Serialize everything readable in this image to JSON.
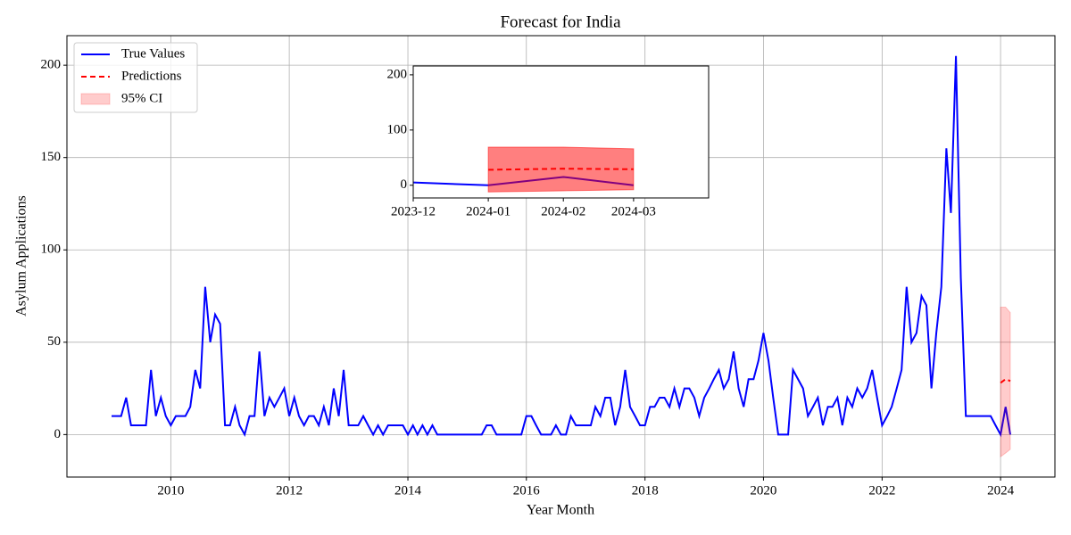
{
  "chart_data": {
    "type": "line",
    "title": "Forecast for India",
    "x_label": "Year Month",
    "y_label": "Asylum Applications",
    "x": [
      "2009-01",
      "2009-02",
      "2009-03",
      "2009-04",
      "2009-05",
      "2009-06",
      "2009-07",
      "2009-08",
      "2009-09",
      "2009-10",
      "2009-11",
      "2009-12",
      "2010-01",
      "2010-02",
      "2010-03",
      "2010-04",
      "2010-05",
      "2010-06",
      "2010-07",
      "2010-08",
      "2010-09",
      "2010-10",
      "2010-11",
      "2010-12",
      "2011-01",
      "2011-02",
      "2011-03",
      "2011-04",
      "2011-05",
      "2011-06",
      "2011-07",
      "2011-08",
      "2011-09",
      "2011-10",
      "2011-11",
      "2011-12",
      "2012-01",
      "2012-02",
      "2012-03",
      "2012-04",
      "2012-05",
      "2012-06",
      "2012-07",
      "2012-08",
      "2012-09",
      "2012-10",
      "2012-11",
      "2012-12",
      "2013-01",
      "2013-02",
      "2013-03",
      "2013-04",
      "2013-05",
      "2013-06",
      "2013-07",
      "2013-08",
      "2013-09",
      "2013-10",
      "2013-11",
      "2013-12",
      "2014-01",
      "2014-02",
      "2014-03",
      "2014-04",
      "2014-05",
      "2014-06",
      "2014-07",
      "2014-08",
      "2014-09",
      "2014-10",
      "2014-11",
      "2014-12",
      "2015-01",
      "2015-02",
      "2015-03",
      "2015-04",
      "2015-05",
      "2015-06",
      "2015-07",
      "2015-08",
      "2015-09",
      "2015-10",
      "2015-11",
      "2015-12",
      "2016-01",
      "2016-02",
      "2016-03",
      "2016-04",
      "2016-05",
      "2016-06",
      "2016-07",
      "2016-08",
      "2016-09",
      "2016-10",
      "2016-11",
      "2016-12",
      "2017-01",
      "2017-02",
      "2017-03",
      "2017-04",
      "2017-05",
      "2017-06",
      "2017-07",
      "2017-08",
      "2017-09",
      "2017-10",
      "2017-11",
      "2017-12",
      "2018-01",
      "2018-02",
      "2018-03",
      "2018-04",
      "2018-05",
      "2018-06",
      "2018-07",
      "2018-08",
      "2018-09",
      "2018-10",
      "2018-11",
      "2018-12",
      "2019-01",
      "2019-02",
      "2019-03",
      "2019-04",
      "2019-05",
      "2019-06",
      "2019-07",
      "2019-08",
      "2019-09",
      "2019-10",
      "2019-11",
      "2019-12",
      "2020-01",
      "2020-02",
      "2020-03",
      "2020-04",
      "2020-05",
      "2020-06",
      "2020-07",
      "2020-08",
      "2020-09",
      "2020-10",
      "2020-11",
      "2020-12",
      "2021-01",
      "2021-02",
      "2021-03",
      "2021-04",
      "2021-05",
      "2021-06",
      "2021-07",
      "2021-08",
      "2021-09",
      "2021-10",
      "2021-11",
      "2021-12",
      "2022-01",
      "2022-02",
      "2022-03",
      "2022-04",
      "2022-05",
      "2022-06",
      "2022-07",
      "2022-08",
      "2022-09",
      "2022-10",
      "2022-11",
      "2022-12",
      "2023-01",
      "2023-02",
      "2023-03",
      "2023-04",
      "2023-05",
      "2023-06",
      "2023-07",
      "2023-08",
      "2023-09",
      "2023-10",
      "2023-11",
      "2023-12",
      "2024-01",
      "2024-02",
      "2024-03"
    ],
    "series": [
      {
        "name": "True Values",
        "color": "#0000ff",
        "style": "solid",
        "values": [
          10,
          10,
          10,
          20,
          5,
          5,
          5,
          5,
          35,
          10,
          20,
          10,
          5,
          10,
          10,
          10,
          15,
          35,
          25,
          80,
          50,
          65,
          60,
          5,
          5,
          15,
          5,
          0,
          10,
          10,
          45,
          10,
          20,
          15,
          20,
          25,
          10,
          20,
          10,
          5,
          10,
          10,
          5,
          15,
          5,
          25,
          10,
          35,
          5,
          5,
          5,
          10,
          5,
          0,
          5,
          0,
          5,
          5,
          5,
          5,
          0,
          5,
          0,
          5,
          0,
          5,
          0,
          0,
          0,
          0,
          0,
          0,
          0,
          0,
          0,
          0,
          5,
          5,
          0,
          0,
          0,
          0,
          0,
          0,
          10,
          10,
          5,
          0,
          0,
          0,
          5,
          0,
          0,
          10,
          5,
          5,
          5,
          5,
          15,
          10,
          20,
          20,
          5,
          15,
          35,
          15,
          10,
          5,
          5,
          15,
          15,
          20,
          20,
          15,
          25,
          15,
          25,
          25,
          20,
          10,
          20,
          25,
          30,
          35,
          25,
          30,
          45,
          25,
          15,
          30,
          30,
          40,
          55,
          40,
          20,
          0,
          0,
          0,
          35,
          30,
          25,
          10,
          15,
          20,
          5,
          15,
          15,
          20,
          5,
          20,
          15,
          25,
          20,
          25,
          35,
          20,
          5,
          10,
          15,
          25,
          35,
          80,
          50,
          55,
          75,
          70,
          25,
          55,
          80,
          155,
          120,
          205,
          85,
          10,
          10,
          10,
          10,
          10,
          10,
          5,
          0,
          15,
          0
        ]
      },
      {
        "name": "Predictions",
        "color": "#ff0000",
        "style": "dashed",
        "x": [
          "2024-01",
          "2024-02",
          "2024-03"
        ],
        "values": [
          28,
          30,
          29
        ]
      },
      {
        "name": "95% CI",
        "color": "#ff0000",
        "style": "band",
        "alpha": 0.2,
        "x": [
          "2024-01",
          "2024-02",
          "2024-03"
        ],
        "lower": [
          -12,
          -10,
          -8
        ],
        "upper": [
          69,
          69,
          66
        ]
      }
    ],
    "xlim": [
      "2008-04",
      "2024-12"
    ],
    "ylim": [
      -23,
      216
    ],
    "xticks": [
      "2010",
      "2012",
      "2014",
      "2016",
      "2018",
      "2020",
      "2022",
      "2024"
    ],
    "yticks": [
      0,
      50,
      100,
      150,
      200
    ],
    "grid": true,
    "legend": "upper left",
    "inset": {
      "xlim": [
        "2023-12",
        "2024-04"
      ],
      "ylim": [
        -23,
        216
      ],
      "xticks": [
        "2023-12",
        "2024-01",
        "2024-02",
        "2024-03"
      ],
      "yticks": [
        0,
        100,
        200
      ],
      "band_alpha": 0.5
    }
  }
}
